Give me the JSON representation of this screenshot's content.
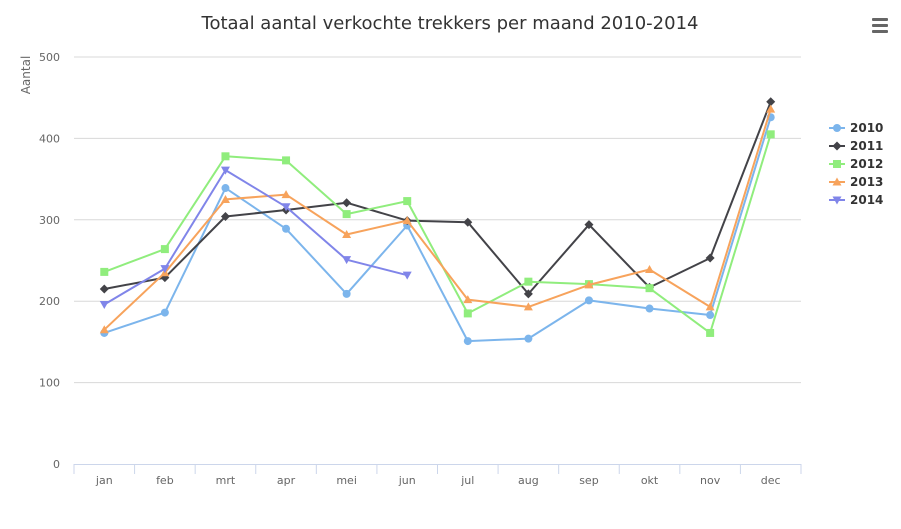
{
  "menu_icon": "hamburger-menu-icon",
  "chart_data": {
    "type": "line",
    "title": "Totaal aantal verkochte trekkers per maand 2010-2014",
    "xlabel": "",
    "ylabel": "Aantal",
    "categories": [
      "jan",
      "feb",
      "mrt",
      "apr",
      "mei",
      "jun",
      "jul",
      "aug",
      "sep",
      "okt",
      "nov",
      "dec"
    ],
    "ylim": [
      0,
      500
    ],
    "yticks": [
      0,
      100,
      200,
      300,
      400,
      500
    ],
    "grid": true,
    "legend_position": "right",
    "series": [
      {
        "name": "2010",
        "color": "#7cb5ec",
        "marker": "circle",
        "values": [
          161,
          186,
          339,
          289,
          209,
          293,
          151,
          154,
          201,
          191,
          183,
          426
        ]
      },
      {
        "name": "2011",
        "color": "#434348",
        "marker": "diamond",
        "values": [
          215,
          229,
          304,
          312,
          321,
          299,
          297,
          209,
          294,
          217,
          253,
          445
        ]
      },
      {
        "name": "2012",
        "color": "#90ed7d",
        "marker": "square",
        "values": [
          236,
          264,
          378,
          373,
          307,
          323,
          185,
          224,
          221,
          216,
          161,
          405
        ]
      },
      {
        "name": "2013",
        "color": "#f7a35c",
        "marker": "triangle",
        "values": [
          165,
          235,
          325,
          331,
          282,
          299,
          202,
          193,
          220,
          239,
          193,
          436
        ]
      },
      {
        "name": "2014",
        "color": "#8085e9",
        "marker": "triangle-down",
        "values": [
          196,
          240,
          361,
          316,
          251,
          232,
          null,
          null,
          null,
          null,
          null,
          null
        ]
      }
    ]
  }
}
